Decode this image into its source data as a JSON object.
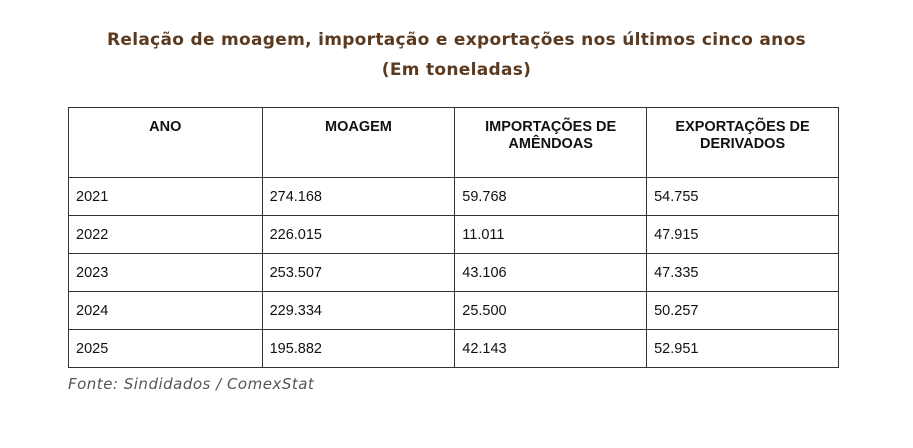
{
  "header": {
    "title": "Relação de moagem, importação e exportações nos últimos cinco anos",
    "subtitle": "(Em toneladas)"
  },
  "table": {
    "columns": [
      "ANO",
      "MOAGEM",
      "IMPORTAÇÕES DE AMÊNDOAS",
      "EXPORTAÇÕES DE DERIVADOS"
    ],
    "rows": [
      [
        "2021",
        "274.168",
        "59.768",
        "54.755"
      ],
      [
        "2022",
        "226.015",
        "11.011",
        "47.915"
      ],
      [
        "2023",
        "253.507",
        "43.106",
        "47.335"
      ],
      [
        "2024",
        "229.334",
        "25.500",
        "50.257"
      ],
      [
        "2025",
        "195.882",
        "42.143",
        "52.951"
      ]
    ]
  },
  "footer": {
    "source": "Fonte: Sindidados / ComexStat"
  }
}
